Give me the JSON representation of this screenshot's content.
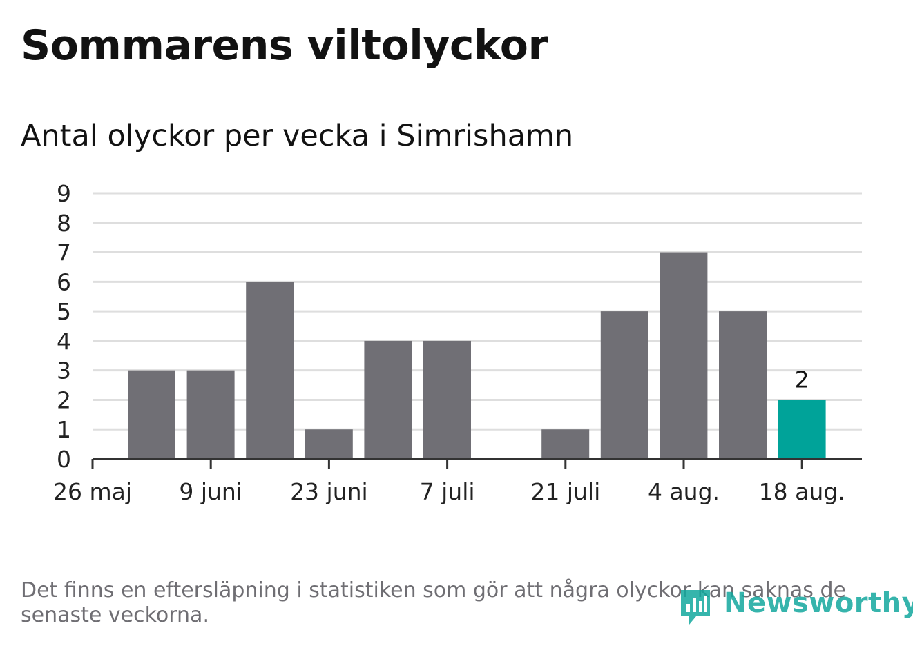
{
  "title": "Sommarens viltolyckor",
  "subtitle": "Antal olyckor per vecka i Simrishamn",
  "note": "Det finns en eftersläpning i statistiken som gör att några olyckor kan saknas de senaste veckorna.",
  "logo_text": "Newsworthy",
  "colors": {
    "bar": "#706f75",
    "highlight": "#00a399",
    "grid": "#dedede",
    "axis": "#333333"
  },
  "chart_data": {
    "type": "bar",
    "categories": [
      "2 juni",
      "9 juni",
      "16 juni",
      "23 juni",
      "30 juni",
      "7 juli",
      "14 juli",
      "21 juli",
      "28 juli",
      "4 aug.",
      "11 aug.",
      "18 aug."
    ],
    "values": [
      3,
      3,
      6,
      1,
      4,
      4,
      0,
      1,
      5,
      7,
      5,
      2
    ],
    "highlight_index": 11,
    "data_labels": [
      {
        "index": 11,
        "text": "2"
      }
    ],
    "x_tick_labels": [
      "26 maj",
      "9 juni",
      "23 juni",
      "7 juli",
      "21 juli",
      "4 aug.",
      "18 aug."
    ],
    "y_ticks": [
      0,
      1,
      2,
      3,
      4,
      5,
      6,
      7,
      8,
      9
    ],
    "ylim": [
      0,
      9
    ],
    "xlabel": "",
    "ylabel": "",
    "grid": true,
    "legend": "none"
  }
}
